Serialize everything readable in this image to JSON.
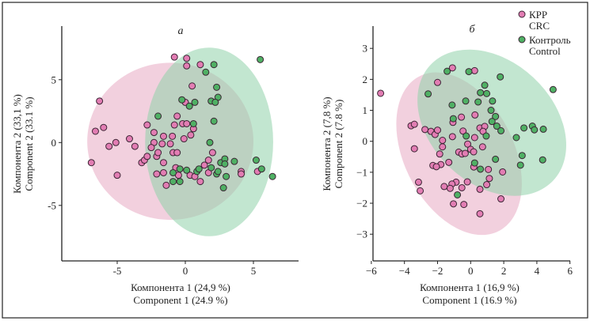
{
  "colors": {
    "crc": "#e27db3",
    "control": "#4fb064",
    "crc_ellipse": "#e8a9c3",
    "control_ellipse": "#8fd1a9",
    "marker_edge": "#3b2434"
  },
  "legend": {
    "items": [
      {
        "label_ru": "КРР",
        "label_en": "CRC",
        "color_key": "crc"
      },
      {
        "label_ru": "Контроль",
        "label_en": "Control",
        "color_key": "control"
      }
    ],
    "placement": "top-right"
  },
  "chart_data": [
    {
      "type": "scatter",
      "title": "а",
      "xlabel_ru": "Компонента 1 (24,9 %)",
      "xlabel_en": "Component 1 (24.9 %)",
      "ylabel_ru": "Компонента 2 (33,1 %)",
      "ylabel_en": "Component 2 (33.1 %)",
      "xlim": [
        -9.1,
        8.2
      ],
      "ylim": [
        -9.4,
        9.1
      ],
      "xticks": [
        "-5",
        "0",
        "5"
      ],
      "yticks": [
        "5",
        "0",
        "-5"
      ],
      "grid": false,
      "ellipses": [
        {
          "series": "CRC",
          "center": [
            -1.1,
            0.1
          ],
          "semi_axes": [
            6.1,
            6.25
          ],
          "angle_deg": 0
        },
        {
          "series": "Control",
          "center": [
            1.75,
            0.05
          ],
          "semi_axes": [
            4.7,
            7.5
          ],
          "angle_deg": 0
        }
      ],
      "series": [
        {
          "name": "CRC",
          "points": [
            [
              -0.8,
              6.8
            ],
            [
              0.1,
              6.7
            ],
            [
              0.1,
              6.1
            ],
            [
              1.1,
              6.2
            ],
            [
              0.5,
              4.5
            ],
            [
              -6.3,
              3.3
            ],
            [
              0,
              3.2
            ],
            [
              -0.6,
              2.1
            ],
            [
              -6.6,
              0.9
            ],
            [
              -6.0,
              1.2
            ],
            [
              -2.8,
              1.4
            ],
            [
              -2.3,
              0.8
            ],
            [
              -0.8,
              1.4
            ],
            [
              -0.2,
              1.5
            ],
            [
              0.1,
              1.5
            ],
            [
              0.6,
              1.1
            ],
            [
              0.4,
              0.6
            ],
            [
              -0.1,
              0.3
            ],
            [
              -1.6,
              0.5
            ],
            [
              -0.95,
              0.5
            ],
            [
              -1.1,
              -0.1
            ],
            [
              -1.7,
              -0.1
            ],
            [
              -2.3,
              0
            ],
            [
              -2.5,
              -0.4
            ],
            [
              -5.1,
              0
            ],
            [
              -5.6,
              -0.3
            ],
            [
              -4.1,
              0.3
            ],
            [
              -3.7,
              -0.3
            ],
            [
              -6.9,
              -1.6
            ],
            [
              -5.0,
              -2.6
            ],
            [
              -3.2,
              -1.6
            ],
            [
              -3.0,
              -1.4
            ],
            [
              -2.8,
              -1.1
            ],
            [
              -2.1,
              -1.1
            ],
            [
              -2.0,
              -0.8
            ],
            [
              -0.9,
              -0.8
            ],
            [
              -0.6,
              -0.8
            ],
            [
              2.0,
              -0.8
            ],
            [
              -1.6,
              -1.6
            ],
            [
              -0.7,
              -2.0
            ],
            [
              -2.1,
              -2.5
            ],
            [
              -1.6,
              -2.4
            ],
            [
              -0.5,
              -2.6
            ],
            [
              -1.4,
              -3.4
            ],
            [
              0.35,
              -2.6
            ],
            [
              0.7,
              -2.7
            ],
            [
              1.1,
              -3.1
            ],
            [
              1.7,
              -1.4
            ],
            [
              1.4,
              -1.8
            ],
            [
              1.7,
              -2.4
            ],
            [
              4.1,
              -2.3
            ],
            [
              4.1,
              -2.5
            ],
            [
              5.3,
              -2.3
            ]
          ]
        },
        {
          "name": "Control",
          "points": [
            [
              5.5,
              6.6
            ],
            [
              2.1,
              6.2
            ],
            [
              1.5,
              5.6
            ],
            [
              2.3,
              4.4
            ],
            [
              2.4,
              3.6
            ],
            [
              1.9,
              3.3
            ],
            [
              2.2,
              3.2
            ],
            [
              -0.25,
              3.4
            ],
            [
              0.3,
              2.9
            ],
            [
              0.7,
              3.2
            ],
            [
              -2.0,
              2.1
            ],
            [
              0.6,
              1.5
            ],
            [
              2.1,
              1.7
            ],
            [
              1.8,
              0
            ],
            [
              2.6,
              -1.6
            ],
            [
              2.9,
              -1.3
            ],
            [
              2.9,
              -1.7
            ],
            [
              3.6,
              -1.5
            ],
            [
              5.2,
              -1.4
            ],
            [
              5.6,
              -2.1
            ],
            [
              6.4,
              -2.7
            ],
            [
              -0.9,
              -2.4
            ],
            [
              -0.4,
              -2.1
            ],
            [
              0.1,
              -2.2
            ],
            [
              0.85,
              -2.3
            ],
            [
              1.0,
              -2.1
            ],
            [
              1.9,
              -2.0
            ],
            [
              2.3,
              -2.5
            ],
            [
              2.4,
              -2.3
            ],
            [
              3.0,
              -2.7
            ],
            [
              2.8,
              -3.6
            ],
            [
              -0.9,
              -3.1
            ],
            [
              -0.4,
              -3.1
            ]
          ]
        }
      ]
    },
    {
      "type": "scatter",
      "title": "б",
      "xlabel_ru": "Компонента 1 (16,9 %)",
      "xlabel_en": "Component 1 (16.9 %)",
      "ylabel_ru": "Компонента 2 (7,8 %)",
      "ylabel_en": "Component 2 (7.8 %)",
      "xlim": [
        -6,
        6
      ],
      "ylim": [
        -3.86,
        3.7
      ],
      "xticks": [
        "−6",
        "−4",
        "−2",
        "0",
        "2",
        "4",
        "6"
      ],
      "yticks": [
        "3",
        "2",
        "1",
        "0",
        "−1",
        "−2",
        "−3"
      ],
      "grid": false,
      "ellipses": [
        {
          "series": "CRC",
          "center": [
            -0.7,
            -0.4
          ],
          "semi_axes": [
            3.98,
            2.33
          ],
          "angle_deg": -22
        },
        {
          "series": "Control",
          "center": [
            1.28,
            0.6
          ],
          "semi_axes": [
            4.57,
            2.21
          ],
          "angle_deg": -12
        }
      ],
      "series": [
        {
          "name": "CRC",
          "points": [
            [
              -5.44,
              1.55
            ],
            [
              -3.6,
              0.5
            ],
            [
              -3.4,
              0.55
            ],
            [
              -3.4,
              -0.24
            ],
            [
              -3.15,
              -1.32
            ],
            [
              -3.05,
              -1.6
            ],
            [
              -2.0,
              1.9
            ],
            [
              -1.1,
              2.37
            ],
            [
              0.24,
              2.28
            ],
            [
              -2.76,
              0.38
            ],
            [
              -2.4,
              0.32
            ],
            [
              -2.15,
              0.22
            ],
            [
              -2.0,
              0.36
            ],
            [
              -1.7,
              0.03
            ],
            [
              -1.7,
              -0.18
            ],
            [
              -1.87,
              -0.41
            ],
            [
              -1.8,
              -0.75
            ],
            [
              -2.28,
              -0.78
            ],
            [
              -2.07,
              -0.82
            ],
            [
              -1.32,
              -0.68
            ],
            [
              -1.1,
              0.15
            ],
            [
              -1.07,
              0.61
            ],
            [
              -0.56,
              0.78
            ],
            [
              -0.46,
              0.33
            ],
            [
              0.26,
              0.85
            ],
            [
              0.24,
              0.12
            ],
            [
              -0.18,
              -0.09
            ],
            [
              0,
              -0.26
            ],
            [
              0.18,
              -0.34
            ],
            [
              -0.72,
              -0.35
            ],
            [
              -0.53,
              -0.41
            ],
            [
              -0.33,
              -0.39
            ],
            [
              0.72,
              -0.18
            ],
            [
              0.56,
              0.43
            ],
            [
              0.85,
              0.48
            ],
            [
              0.75,
              0.32
            ],
            [
              0.19,
              -0.83
            ],
            [
              1.07,
              -0.91
            ],
            [
              1.13,
              -1.2
            ],
            [
              0.97,
              -1.4
            ],
            [
              1.93,
              -0.99
            ],
            [
              1.83,
              -1.86
            ],
            [
              0.56,
              -1.55
            ],
            [
              0.56,
              -2.34
            ],
            [
              -0.2,
              -1.31
            ],
            [
              -0.53,
              -1.5
            ],
            [
              -0.88,
              -1.32
            ],
            [
              -1.13,
              -1.38
            ],
            [
              -1.24,
              -1.52
            ],
            [
              -1.6,
              -1.46
            ],
            [
              -1.04,
              -2.02
            ],
            [
              -0.41,
              -2.04
            ]
          ]
        },
        {
          "name": "Control",
          "points": [
            [
              -1.42,
              2.26
            ],
            [
              -0.11,
              2.25
            ],
            [
              -2.57,
              1.53
            ],
            [
              -1.12,
              1.17
            ],
            [
              -1.05,
              0.73
            ],
            [
              -0.3,
              1.3
            ],
            [
              0.45,
              1.27
            ],
            [
              0.59,
              1.57
            ],
            [
              0.97,
              1.54
            ],
            [
              0.85,
              1.81
            ],
            [
              1.79,
              2.08
            ],
            [
              1.32,
              1.3
            ],
            [
              1.23,
              1.0
            ],
            [
              1.5,
              0.8
            ],
            [
              1.29,
              0.64
            ],
            [
              1.58,
              0.49
            ],
            [
              1.83,
              0.34
            ],
            [
              0.94,
              0.17
            ],
            [
              -0.27,
              0.17
            ],
            [
              0.24,
              -0.7
            ],
            [
              0.59,
              -0.9
            ],
            [
              1.5,
              -0.58
            ],
            [
              2.76,
              0.12
            ],
            [
              3.22,
              0.43
            ],
            [
              3.73,
              0.49
            ],
            [
              3.85,
              0.37
            ],
            [
              4.39,
              0.39
            ],
            [
              3.11,
              -0.46
            ],
            [
              3.01,
              -0.77
            ],
            [
              4.35,
              -0.6
            ],
            [
              4.98,
              1.67
            ],
            [
              -0.8,
              -1.73
            ]
          ]
        }
      ]
    }
  ]
}
